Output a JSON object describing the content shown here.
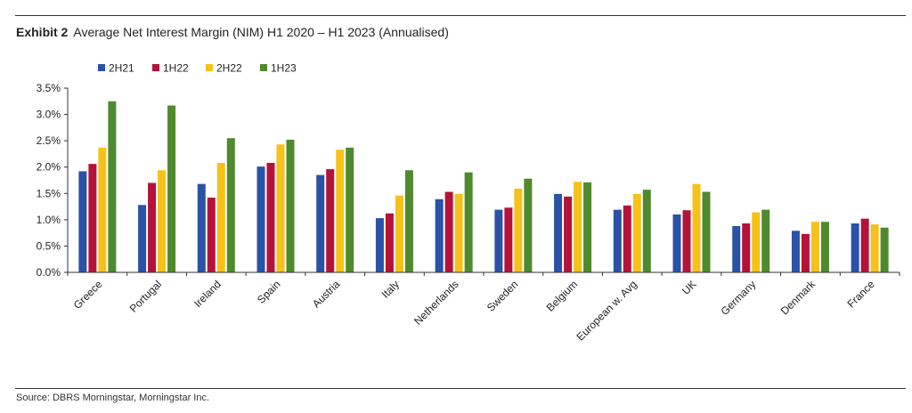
{
  "header": {
    "label": "Exhibit 2",
    "title": "Average Net Interest Margin (NIM) H1 2020 – H1 2023 (Annualised)"
  },
  "source": "Source: DBRS Morningstar, Morningstar Inc.",
  "chart_data": {
    "type": "bar",
    "title": "Average Net Interest Margin (NIM) H1 2020 – H1 2023 (Annualised)",
    "xlabel": "",
    "ylabel": "",
    "ylim": [
      0,
      3.5
    ],
    "y_ticks": [
      "0.0%",
      "0.5%",
      "1.0%",
      "1.5%",
      "2.0%",
      "2.5%",
      "3.0%",
      "3.5%"
    ],
    "grid": false,
    "legend_position": "top-left",
    "categories": [
      "Greece",
      "Portugal",
      "Ireland",
      "Spain",
      "Austria",
      "Italy",
      "Netherlands",
      "Sweden",
      "Belgium",
      "European w. Avg",
      "UK",
      "Germany",
      "Denmark",
      "France"
    ],
    "series": [
      {
        "name": "2H21",
        "color": "#2a52a6",
        "values": [
          1.92,
          1.28,
          1.68,
          2.01,
          1.85,
          1.03,
          1.39,
          1.19,
          1.49,
          1.19,
          1.1,
          0.88,
          0.79,
          0.93
        ]
      },
      {
        "name": "1H22",
        "color": "#b5123a",
        "values": [
          2.06,
          1.7,
          1.42,
          2.08,
          1.96,
          1.12,
          1.53,
          1.23,
          1.44,
          1.27,
          1.18,
          0.93,
          0.73,
          1.02
        ]
      },
      {
        "name": "2H22",
        "color": "#f6c21a",
        "values": [
          2.37,
          1.94,
          2.08,
          2.43,
          2.33,
          1.46,
          1.49,
          1.59,
          1.72,
          1.49,
          1.68,
          1.14,
          0.96,
          0.91
        ]
      },
      {
        "name": "1H23",
        "color": "#4f8a2f",
        "values": [
          3.25,
          3.17,
          2.55,
          2.52,
          2.37,
          1.94,
          1.9,
          1.78,
          1.71,
          1.57,
          1.53,
          1.19,
          0.96,
          0.85
        ]
      }
    ]
  }
}
